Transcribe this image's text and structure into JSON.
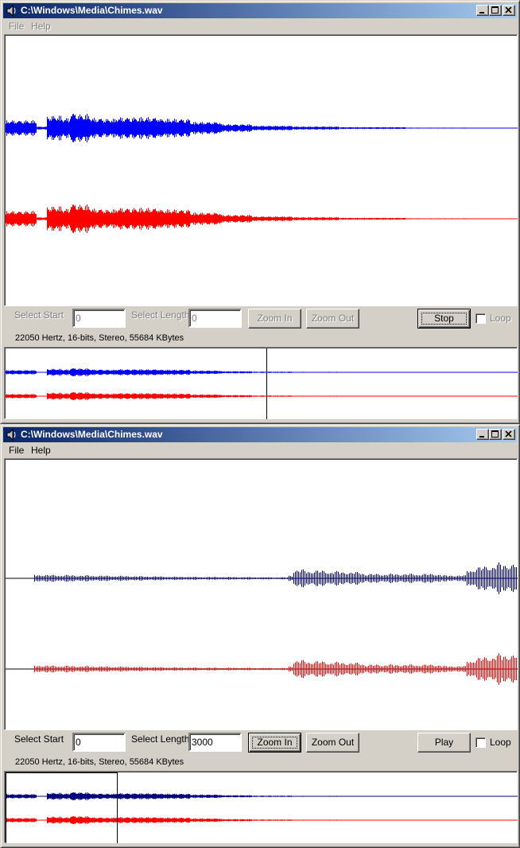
{
  "windows": [
    {
      "title": "C:\\Windows\\Media\\Chimes.wav",
      "menu": [
        {
          "label": "File",
          "key": "F"
        },
        {
          "label": "Help",
          "key": "H"
        }
      ],
      "menu_enabled": false,
      "select_start_label": "Select Start",
      "select_start_value": "0",
      "select_length_label": "Select Length",
      "select_length_value": "0",
      "zoom_in_label": "Zoom In",
      "zoom_out_label": "Zoom Out",
      "play_button_label": "Stop",
      "loop_label": "Loop",
      "controls_enabled": false,
      "info": "22050 Hertz, 16-bits, Stereo, 55684 KBytes",
      "overview_cursor_fraction": 0.51,
      "channel_colors": {
        "left": "#0000ff",
        "right": "#ff0000"
      }
    },
    {
      "title": "C:\\Windows\\Media\\Chimes.wav",
      "menu": [
        {
          "label": "File",
          "key": "F"
        },
        {
          "label": "Help",
          "key": "H"
        }
      ],
      "menu_enabled": true,
      "select_start_label": "Select Start",
      "select_start_value": "0",
      "select_length_label": "Select Length",
      "select_length_value": "3000",
      "zoom_in_label": "Zoom In",
      "zoom_out_label": "Zoom Out",
      "play_button_label": "Play",
      "loop_label": "Loop",
      "controls_enabled": true,
      "info": "22050 Hertz, 16-bits, Stereo, 55684 KBytes",
      "overview_selection_fraction": 0.217,
      "channel_colors": {
        "left": "#000080",
        "right": "#ff0000"
      }
    }
  ]
}
